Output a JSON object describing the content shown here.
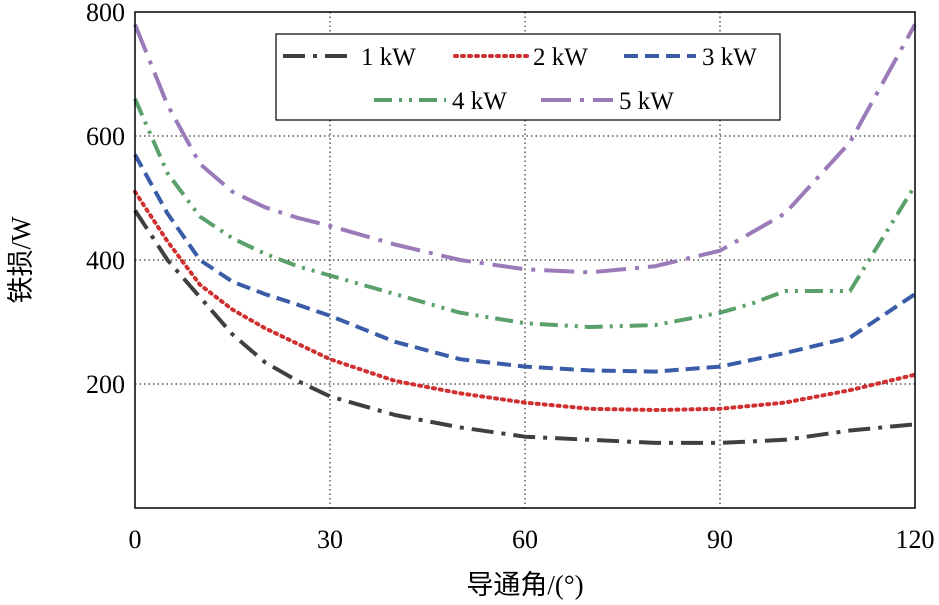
{
  "chart_data": {
    "type": "line",
    "xlabel": "导通角/(°)",
    "ylabel": "铁损/W",
    "xlim": [
      0,
      120
    ],
    "ylim": [
      0,
      800
    ],
    "xticks": [
      0,
      30,
      60,
      90,
      120
    ],
    "yticks": [
      200,
      400,
      600,
      800
    ],
    "grid": true,
    "legend": "top",
    "series": [
      {
        "name": "1 kW",
        "color": "#404040",
        "dash": "dashdot",
        "x": [
          0,
          5,
          10,
          15,
          20,
          25,
          30,
          40,
          50,
          60,
          70,
          80,
          90,
          100,
          110,
          120
        ],
        "y": [
          480,
          400,
          340,
          280,
          235,
          205,
          180,
          150,
          130,
          115,
          110,
          105,
          105,
          110,
          125,
          135
        ]
      },
      {
        "name": "2 kW",
        "color": "#d03030",
        "dash": "dotted",
        "x": [
          0,
          5,
          10,
          15,
          20,
          25,
          30,
          40,
          50,
          60,
          70,
          80,
          90,
          100,
          110,
          120
        ],
        "y": [
          510,
          430,
          360,
          320,
          290,
          265,
          240,
          205,
          185,
          170,
          160,
          158,
          160,
          170,
          190,
          215
        ]
      },
      {
        "name": "3 kW",
        "color": "#3a5ca8",
        "dash": "dashed",
        "x": [
          0,
          5,
          10,
          15,
          20,
          25,
          30,
          40,
          50,
          60,
          70,
          80,
          90,
          100,
          110,
          120
        ],
        "y": [
          570,
          475,
          400,
          365,
          345,
          328,
          310,
          268,
          240,
          228,
          222,
          220,
          228,
          250,
          275,
          345
        ]
      },
      {
        "name": "4 kW",
        "color": "#5aa06a",
        "dash": "dashdotdot",
        "x": [
          0,
          5,
          10,
          15,
          20,
          25,
          30,
          40,
          50,
          60,
          70,
          80,
          90,
          95,
          100,
          105,
          110,
          120
        ],
        "y": [
          660,
          540,
          470,
          435,
          410,
          390,
          375,
          345,
          315,
          298,
          292,
          295,
          315,
          330,
          350,
          350,
          350,
          520
        ]
      },
      {
        "name": "5 kW",
        "color": "#9a7ab8",
        "dash": "longdashdot",
        "x": [
          0,
          5,
          10,
          15,
          20,
          25,
          30,
          40,
          50,
          60,
          70,
          80,
          90,
          100,
          110,
          120
        ],
        "y": [
          780,
          650,
          555,
          510,
          485,
          468,
          455,
          425,
          400,
          385,
          380,
          390,
          415,
          475,
          590,
          780
        ]
      }
    ]
  }
}
